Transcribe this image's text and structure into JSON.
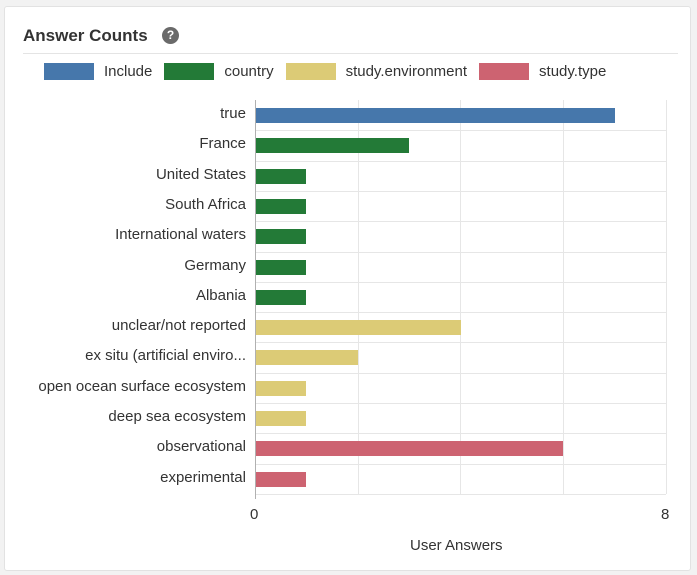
{
  "panel": {
    "title": "Answer Counts",
    "help_icon": "?"
  },
  "colors": {
    "Include": "#4677ab",
    "country": "#237a37",
    "study.environment": "#dccb76",
    "study.type": "#cd6371"
  },
  "chart_data": {
    "type": "bar",
    "orientation": "horizontal",
    "title": "Answer Counts",
    "xlabel": "User Answers",
    "ylabel": "",
    "xlim": [
      0,
      8
    ],
    "x_ticks": [
      "0",
      "8"
    ],
    "grid": true,
    "legend_position": "top",
    "legend": [
      "Include",
      "country",
      "study.environment",
      "study.type"
    ],
    "categories": [
      "true",
      "France",
      "United States",
      "South Africa",
      "International waters",
      "Germany",
      "Albania",
      "unclear/not reported",
      "ex situ (artificial enviro...",
      "open ocean surface ecosystem",
      "deep sea ecosystem",
      "observational",
      "experimental"
    ],
    "values": [
      7,
      3,
      1,
      1,
      1,
      1,
      1,
      4,
      2,
      1,
      1,
      6,
      1
    ],
    "groups": [
      "Include",
      "country",
      "country",
      "country",
      "country",
      "country",
      "country",
      "study.environment",
      "study.environment",
      "study.environment",
      "study.environment",
      "study.type",
      "study.type"
    ]
  }
}
